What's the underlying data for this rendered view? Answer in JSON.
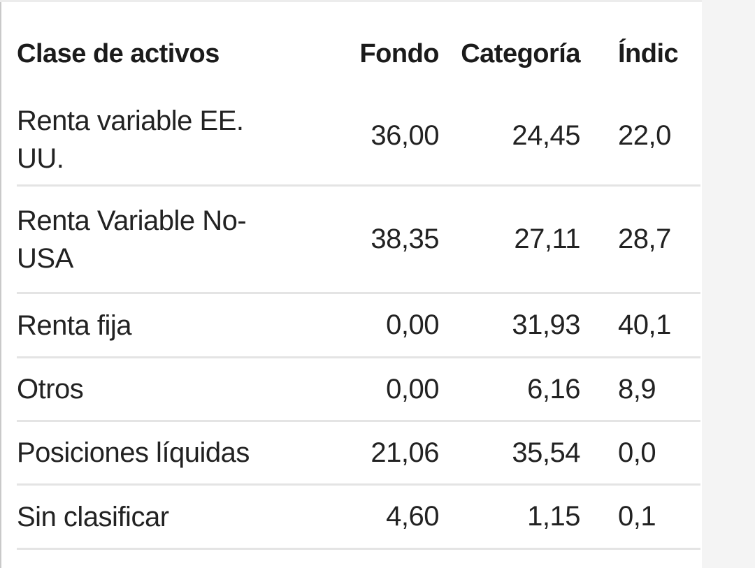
{
  "table": {
    "headers": {
      "asset_class": "Clase de activos",
      "fund": "Fondo",
      "category": "Categoría",
      "index": "Índic"
    },
    "rows": [
      {
        "name_line1": "Renta variable EE.",
        "name_line2": "UU.",
        "fund": "36,00",
        "category": "24,45",
        "index": "22,0"
      },
      {
        "name_line1": "Renta Variable No-",
        "name_line2": "USA",
        "fund": "38,35",
        "category": "27,11",
        "index": "28,7"
      },
      {
        "name_line1": "Renta fija",
        "name_line2": "",
        "fund": "0,00",
        "category": "31,93",
        "index": "40,1"
      },
      {
        "name_line1": "Otros",
        "name_line2": "",
        "fund": "0,00",
        "category": "6,16",
        "index": "8,9"
      },
      {
        "name_line1": "Posiciones líquidas",
        "name_line2": "",
        "fund": "21,06",
        "category": "35,54",
        "index": "0,0"
      },
      {
        "name_line1": "Sin clasificar",
        "name_line2": "",
        "fund": "4,60",
        "category": "1,15",
        "index": "0,1"
      }
    ]
  }
}
